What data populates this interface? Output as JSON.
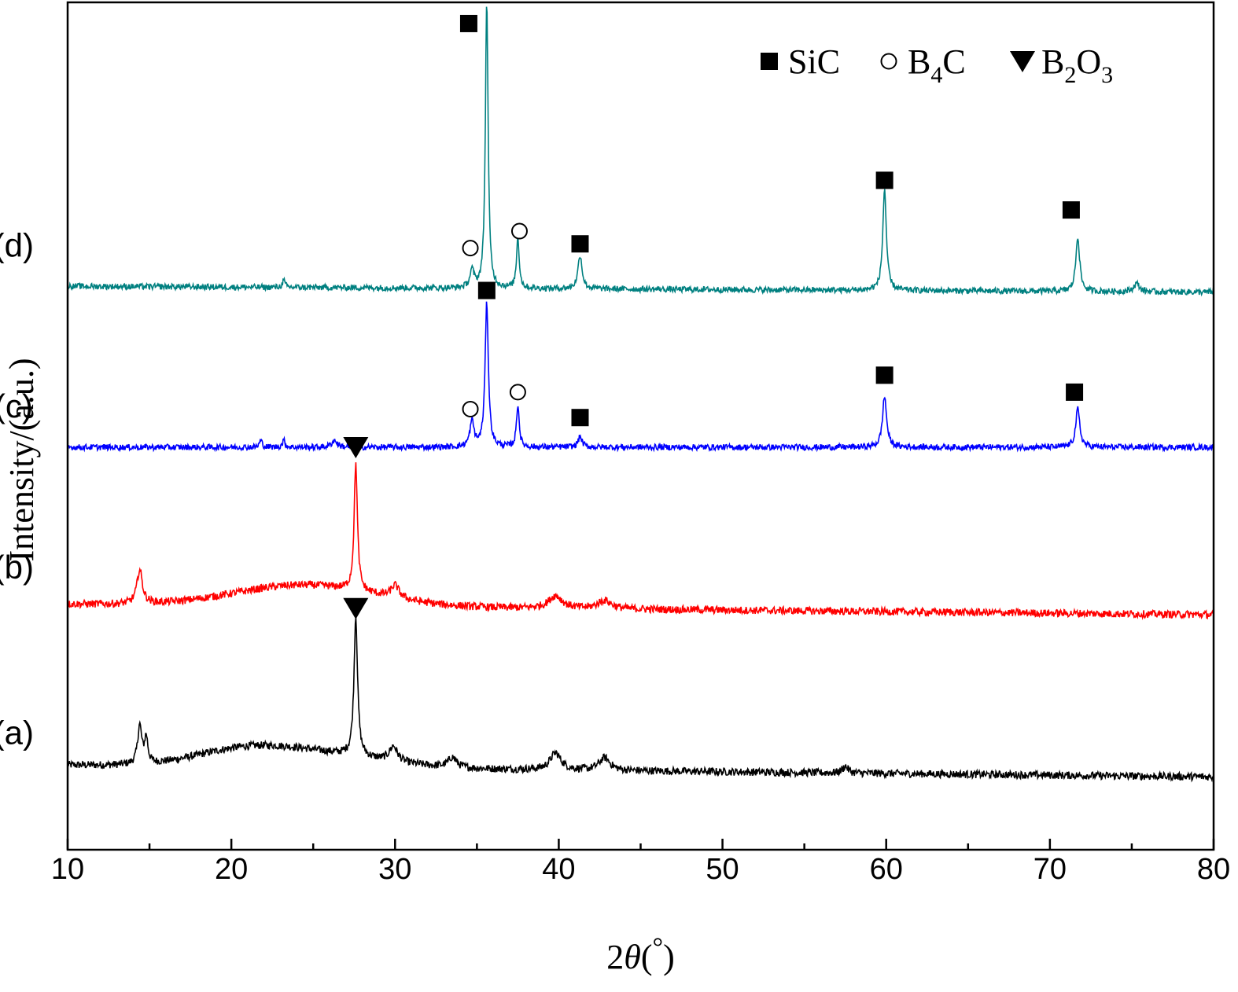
{
  "chart_data": {
    "type": "line",
    "xlabel_prefix": "2",
    "xlabel_var": "θ",
    "xlabel_unit_open": "(",
    "xlabel_unit": "°",
    "xlabel_unit_close": ")",
    "ylabel": "Intensity/(a.u.)",
    "xlim": [
      10,
      80
    ],
    "x_ticks": [
      "10",
      "20",
      "30",
      "40",
      "50",
      "60",
      "70",
      "80"
    ],
    "grid": false,
    "legend_position": "top-right",
    "legend": [
      {
        "marker": "square",
        "label": "SiC",
        "label_parts": [
          "SiC"
        ]
      },
      {
        "marker": "circle",
        "label": "B4C",
        "label_parts": [
          "B",
          "4",
          "C"
        ]
      },
      {
        "marker": "triangle",
        "label": "B2O3",
        "label_parts": [
          "B",
          "2",
          "O",
          "3"
        ]
      }
    ],
    "colors": {
      "a": "#000000",
      "b": "#ff0000",
      "c": "#0000ff",
      "d": "#008080"
    },
    "series": [
      {
        "id": "a",
        "name": "(a)",
        "color": "#000000",
        "baseline": 0.1,
        "slope": -0.0002,
        "noise": 0.0045,
        "peaks": [
          [
            14.4,
            0.045,
            0.15
          ],
          [
            14.8,
            0.03,
            0.12
          ],
          [
            27.6,
            0.165,
            0.13
          ],
          [
            29.9,
            0.018,
            0.3
          ],
          [
            33.5,
            0.012,
            0.3
          ],
          [
            39.8,
            0.02,
            0.4
          ],
          [
            42.8,
            0.015,
            0.4
          ],
          [
            57.5,
            0.008,
            0.2
          ]
        ],
        "humps": [
          [
            24.5,
            0.018,
            6
          ],
          [
            20.5,
            0.012,
            4
          ]
        ],
        "markers": [
          {
            "type": "triangle",
            "x": 27.6,
            "y": 0.285
          }
        ]
      },
      {
        "id": "b",
        "name": "(b)",
        "color": "#ff0000",
        "baseline": 0.29,
        "slope": -0.00018,
        "noise": 0.0045,
        "peaks": [
          [
            14.4,
            0.04,
            0.2
          ],
          [
            27.6,
            0.15,
            0.12
          ],
          [
            30.0,
            0.015,
            0.3
          ],
          [
            39.8,
            0.015,
            0.5
          ],
          [
            42.8,
            0.01,
            0.5
          ]
        ],
        "humps": [
          [
            24.5,
            0.025,
            6
          ]
        ],
        "markers": [
          {
            "type": "triangle",
            "x": 27.6,
            "y": 0.475
          }
        ]
      },
      {
        "id": "c",
        "name": "(c)",
        "color": "#0000ff",
        "baseline": 0.475,
        "slope": 0,
        "noise": 0.0035,
        "peaks": [
          [
            34.7,
            0.03,
            0.15
          ],
          [
            35.6,
            0.17,
            0.12
          ],
          [
            37.5,
            0.05,
            0.1
          ],
          [
            41.3,
            0.012,
            0.15
          ],
          [
            59.9,
            0.06,
            0.15
          ],
          [
            71.7,
            0.045,
            0.15
          ],
          [
            21.8,
            0.008,
            0.1
          ],
          [
            23.2,
            0.008,
            0.1
          ],
          [
            26.3,
            0.008,
            0.2
          ]
        ],
        "humps": [],
        "markers": [
          {
            "type": "square",
            "x": 35.6,
            "y": 0.66
          },
          {
            "type": "circle",
            "x": 34.6,
            "y": 0.52
          },
          {
            "type": "circle",
            "x": 37.5,
            "y": 0.54
          },
          {
            "type": "square",
            "x": 41.3,
            "y": 0.51
          },
          {
            "type": "square",
            "x": 59.9,
            "y": 0.56
          },
          {
            "type": "square",
            "x": 71.5,
            "y": 0.54
          }
        ]
      },
      {
        "id": "d",
        "name": "(d)",
        "color": "#008080",
        "baseline": 0.665,
        "slope": -0.0001,
        "noise": 0.0035,
        "peaks": [
          [
            34.7,
            0.02,
            0.15
          ],
          [
            35.6,
            0.34,
            0.1
          ],
          [
            37.5,
            0.06,
            0.1
          ],
          [
            41.3,
            0.04,
            0.15
          ],
          [
            59.9,
            0.12,
            0.13
          ],
          [
            71.7,
            0.065,
            0.14
          ],
          [
            75.3,
            0.01,
            0.2
          ],
          [
            23.2,
            0.008,
            0.1
          ]
        ],
        "humps": [],
        "markers": [
          {
            "type": "square",
            "x": 34.5,
            "y": 0.975
          },
          {
            "type": "circle",
            "x": 34.6,
            "y": 0.71
          },
          {
            "type": "circle",
            "x": 37.6,
            "y": 0.73
          },
          {
            "type": "square",
            "x": 41.3,
            "y": 0.715
          },
          {
            "type": "square",
            "x": 59.9,
            "y": 0.79
          },
          {
            "type": "square",
            "x": 71.3,
            "y": 0.755
          }
        ]
      }
    ],
    "curve_labels": [
      {
        "text": "(a)",
        "x": 6.7,
        "y": 0.125
      },
      {
        "text": "(b)",
        "x": 6.7,
        "y": 0.32
      },
      {
        "text": "(c)",
        "x": 6.7,
        "y": 0.51
      },
      {
        "text": "(d)",
        "x": 6.7,
        "y": 0.7
      }
    ]
  }
}
